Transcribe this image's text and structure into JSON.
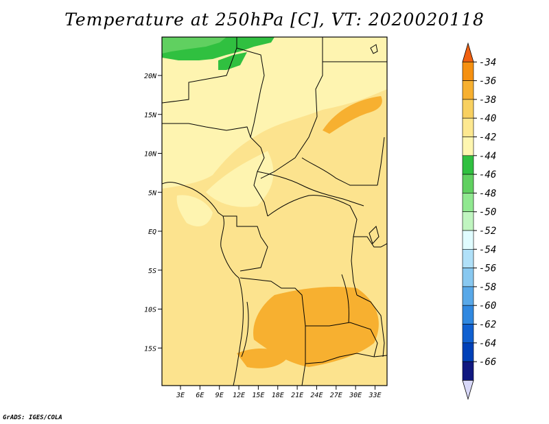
{
  "title": "Temperature at 250hPa [C], VT: 2020020118",
  "footer": "GrADS: IGES/COLA",
  "map": {
    "lat_labels": [
      "20N",
      "15N",
      "10N",
      "5N",
      "EQ",
      "5S",
      "10S",
      "15S"
    ],
    "lon_labels": [
      "3E",
      "6E",
      "9E",
      "12E",
      "15E",
      "18E",
      "21E",
      "24E",
      "27E",
      "30E",
      "33E"
    ],
    "lat_values": [
      20,
      15,
      10,
      5,
      0,
      -5,
      -10,
      -15
    ],
    "lon_values": [
      3,
      6,
      9,
      12,
      15,
      18,
      21,
      24,
      27,
      30,
      33
    ]
  },
  "colorbar": {
    "labels": [
      "-34",
      "-36",
      "-38",
      "-40",
      "-42",
      "-44",
      "-46",
      "-48",
      "-50",
      "-52",
      "-54",
      "-56",
      "-58",
      "-60",
      "-62",
      "-64",
      "-66"
    ],
    "colors": [
      "#f06010",
      "#f59010",
      "#f7b030",
      "#f8d060",
      "#fde890",
      "#fef6b0",
      "#30c040",
      "#60d060",
      "#90e890",
      "#c0f5c0",
      "#e0fcff",
      "#b0e0f8",
      "#88c8f0",
      "#58a8e8",
      "#3088e0",
      "#1060d0",
      "#0040b8",
      "#101880",
      "#d8d8f8"
    ]
  }
}
